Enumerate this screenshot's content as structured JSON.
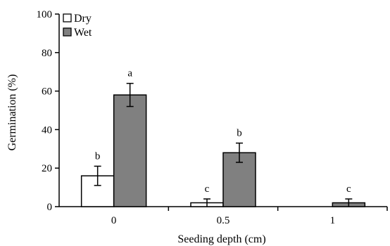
{
  "chart_data": {
    "type": "bar",
    "xlabel": "Seeding depth (cm)",
    "ylabel": "Germination (%)",
    "categories": [
      "0",
      "0.5",
      "1"
    ],
    "ylim": [
      0,
      100
    ],
    "yticks": [
      0,
      20,
      40,
      60,
      80,
      100
    ],
    "grid": false,
    "legend_position": "top-left",
    "series": [
      {
        "name": "Dry",
        "color": "#ffffff",
        "values": [
          16,
          2,
          0
        ],
        "errors": [
          5,
          2,
          0
        ],
        "labels": [
          "b",
          "c",
          ""
        ]
      },
      {
        "name": "Wet",
        "color": "#808080",
        "values": [
          58,
          28,
          2
        ],
        "errors": [
          6,
          5,
          2
        ],
        "labels": [
          "a",
          "b",
          "c"
        ]
      }
    ]
  }
}
